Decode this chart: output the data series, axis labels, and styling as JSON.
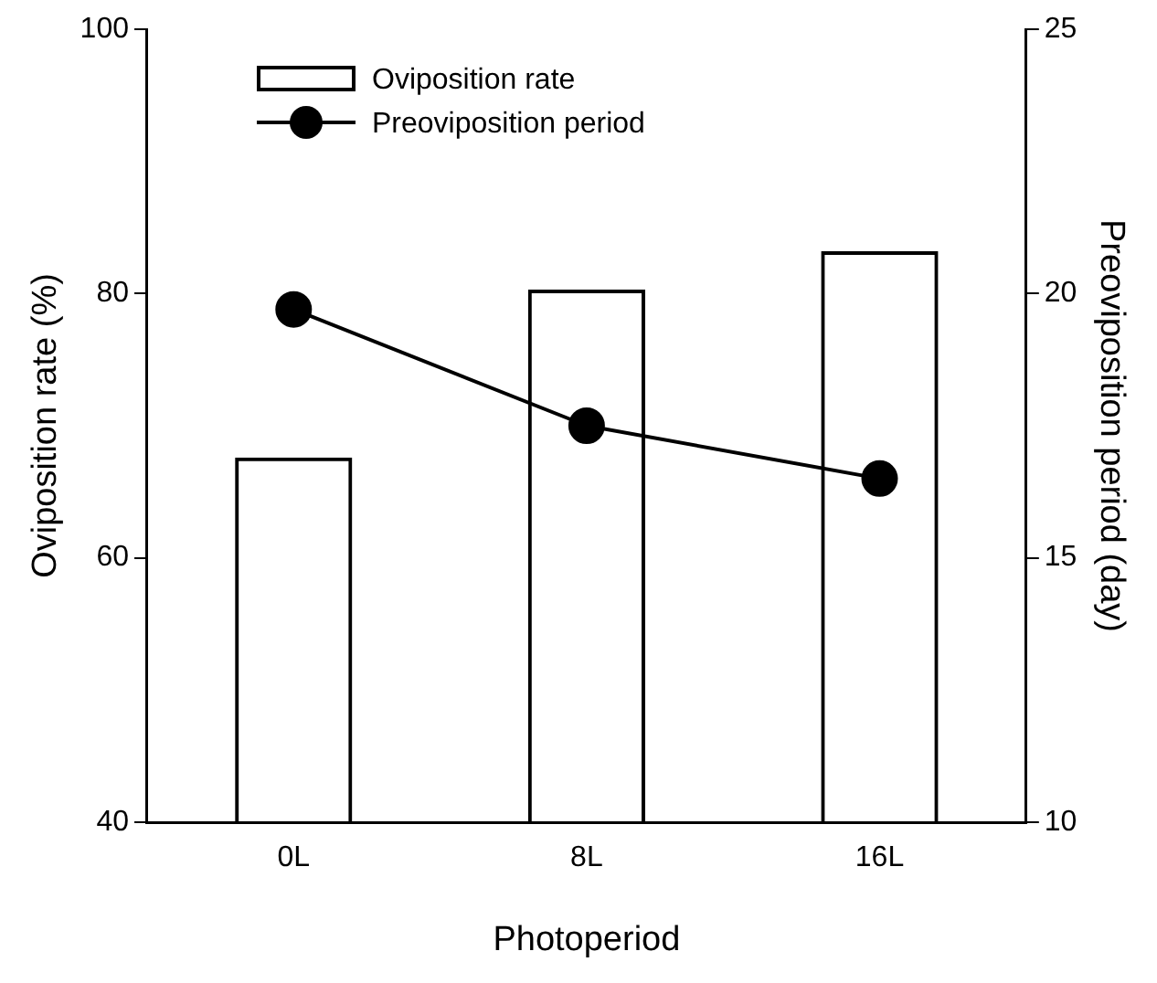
{
  "chart_data": {
    "type": "bar",
    "xlabel": "Photoperiod",
    "ylabel": "Oviposition rate (%)",
    "y2label": "Preoviposition period (day)",
    "categories": [
      "0L",
      "8L",
      "16L"
    ],
    "series": [
      {
        "name": "Oviposition rate",
        "color": "#000000",
        "values": [
          67.6,
          80.3,
          83.2
        ]
      },
      {
        "name": "Preoviposition period",
        "type": "line",
        "axis": "y2",
        "color": "#000000",
        "values": [
          19.7,
          17.5,
          16.5
        ]
      }
    ],
    "ylim": [
      40,
      100
    ],
    "yticks": [
      40,
      60,
      80,
      100
    ],
    "y2lim": [
      10,
      25
    ],
    "y2ticks": [
      10,
      15,
      20,
      25
    ],
    "grid": false,
    "legend": "top left",
    "marker": "circle",
    "line_style": "solid"
  }
}
